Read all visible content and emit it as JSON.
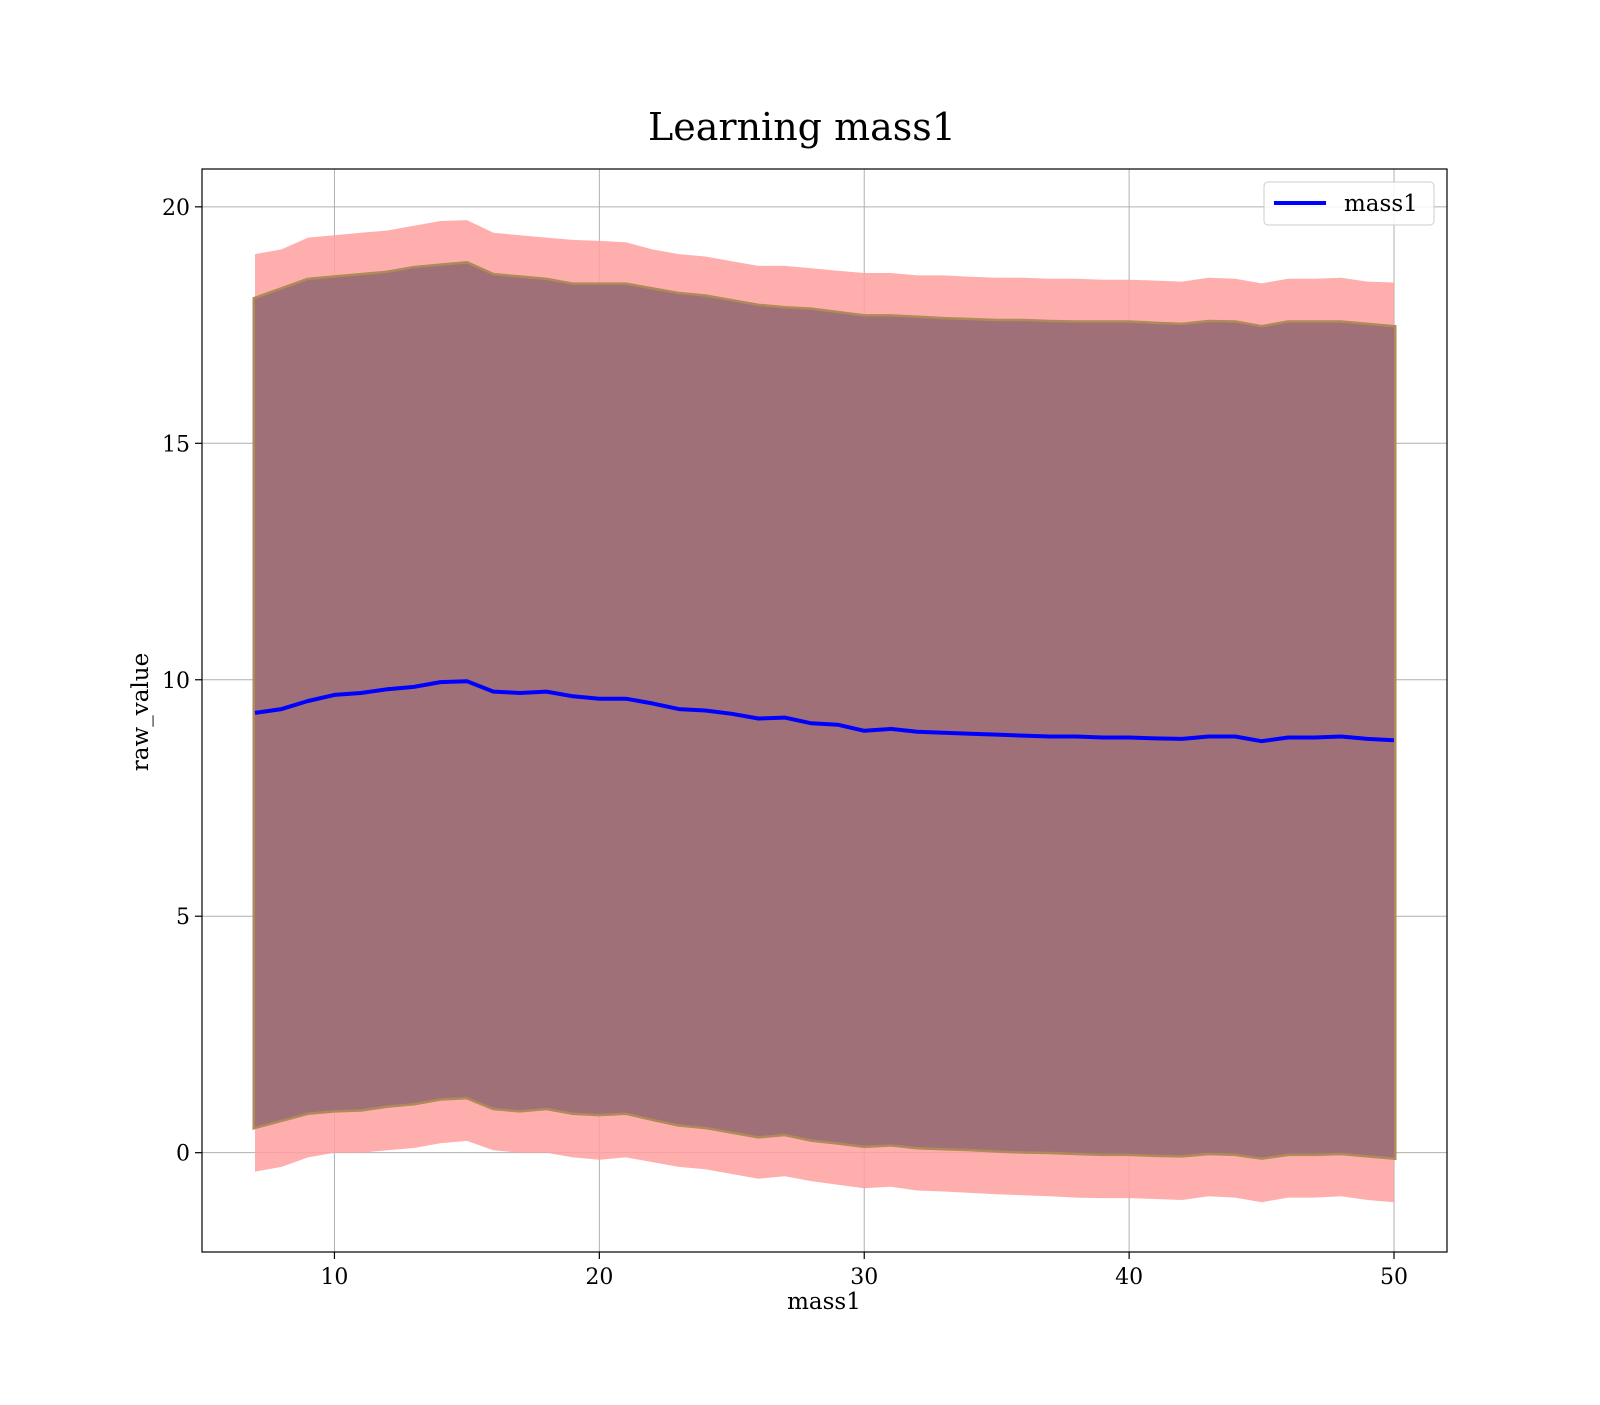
{
  "chart_data": {
    "type": "line",
    "title": "Learning mass1",
    "xlabel": "mass1",
    "ylabel": "raw_value",
    "xlim": [
      5,
      52
    ],
    "ylim": [
      -2.1,
      20.8
    ],
    "xticks": [
      10,
      20,
      30,
      40,
      50
    ],
    "yticks": [
      0,
      5,
      10,
      15,
      20
    ],
    "grid": true,
    "legend_position": "upper right",
    "x": [
      7.0,
      8.0,
      9.0,
      10.0,
      11.0,
      12.0,
      13.0,
      14.0,
      15.0,
      16.0,
      17.0,
      18.0,
      19.0,
      20.0,
      21.0,
      22.0,
      23.0,
      24.0,
      25.0,
      26.0,
      27.0,
      28.0,
      29.0,
      30.0,
      31.0,
      32.0,
      33.0,
      34.0,
      35.0,
      36.0,
      37.0,
      38.0,
      39.0,
      40.0,
      41.0,
      42.0,
      43.0,
      44.0,
      45.0,
      46.0,
      47.0,
      48.0,
      49.0,
      50.0
    ],
    "series": [
      {
        "name": "mass1",
        "role": "mean",
        "color": "#0000ff",
        "values": [
          9.3,
          9.38,
          9.55,
          9.68,
          9.72,
          9.8,
          9.85,
          9.95,
          9.97,
          9.75,
          9.72,
          9.75,
          9.65,
          9.6,
          9.6,
          9.5,
          9.38,
          9.35,
          9.28,
          9.18,
          9.2,
          9.08,
          9.05,
          8.92,
          8.96,
          8.9,
          8.88,
          8.86,
          8.84,
          8.82,
          8.8,
          8.8,
          8.78,
          8.78,
          8.76,
          8.75,
          8.8,
          8.8,
          8.7,
          8.78,
          8.78,
          8.8,
          8.75,
          8.72
        ]
      },
      {
        "role": "inner-band-upper",
        "color": "#8b4a5a",
        "values": [
          18.05,
          18.25,
          18.45,
          18.5,
          18.55,
          18.6,
          18.7,
          18.75,
          18.8,
          18.55,
          18.5,
          18.45,
          18.35,
          18.35,
          18.35,
          18.25,
          18.15,
          18.1,
          18.0,
          17.9,
          17.85,
          17.82,
          17.75,
          17.68,
          17.68,
          17.65,
          17.62,
          17.6,
          17.58,
          17.58,
          17.56,
          17.55,
          17.55,
          17.55,
          17.52,
          17.5,
          17.56,
          17.55,
          17.45,
          17.55,
          17.55,
          17.55,
          17.5,
          17.45
        ]
      },
      {
        "role": "inner-band-lower",
        "color": "#8b4a5a",
        "values": [
          0.55,
          0.7,
          0.85,
          0.9,
          0.92,
          1.0,
          1.05,
          1.15,
          1.18,
          0.95,
          0.9,
          0.95,
          0.85,
          0.82,
          0.85,
          0.72,
          0.6,
          0.55,
          0.45,
          0.35,
          0.4,
          0.28,
          0.22,
          0.15,
          0.18,
          0.12,
          0.1,
          0.08,
          0.05,
          0.03,
          0.02,
          0.0,
          -0.02,
          -0.02,
          -0.04,
          -0.05,
          0.0,
          -0.02,
          -0.1,
          -0.02,
          -0.02,
          0.0,
          -0.05,
          -0.1
        ]
      },
      {
        "role": "outer-band-upper",
        "color": "#ffa0a0",
        "values": [
          19.0,
          19.1,
          19.35,
          19.4,
          19.45,
          19.5,
          19.6,
          19.7,
          19.72,
          19.45,
          19.4,
          19.35,
          19.3,
          19.28,
          19.25,
          19.1,
          19.0,
          18.95,
          18.85,
          18.75,
          18.75,
          18.7,
          18.65,
          18.6,
          18.6,
          18.55,
          18.55,
          18.52,
          18.5,
          18.5,
          18.48,
          18.48,
          18.46,
          18.46,
          18.44,
          18.42,
          18.5,
          18.48,
          18.38,
          18.48,
          18.48,
          18.5,
          18.42,
          18.4
        ]
      },
      {
        "role": "outer-band-lower",
        "color": "#ffa0a0",
        "values": [
          -0.4,
          -0.3,
          -0.1,
          0.0,
          0.0,
          0.05,
          0.1,
          0.2,
          0.25,
          0.05,
          0.0,
          0.0,
          -0.1,
          -0.15,
          -0.1,
          -0.2,
          -0.3,
          -0.35,
          -0.45,
          -0.55,
          -0.5,
          -0.6,
          -0.68,
          -0.75,
          -0.72,
          -0.8,
          -0.82,
          -0.85,
          -0.88,
          -0.9,
          -0.92,
          -0.95,
          -0.96,
          -0.96,
          -0.98,
          -1.0,
          -0.92,
          -0.95,
          -1.05,
          -0.95,
          -0.95,
          -0.92,
          -1.0,
          -1.05
        ]
      }
    ]
  }
}
